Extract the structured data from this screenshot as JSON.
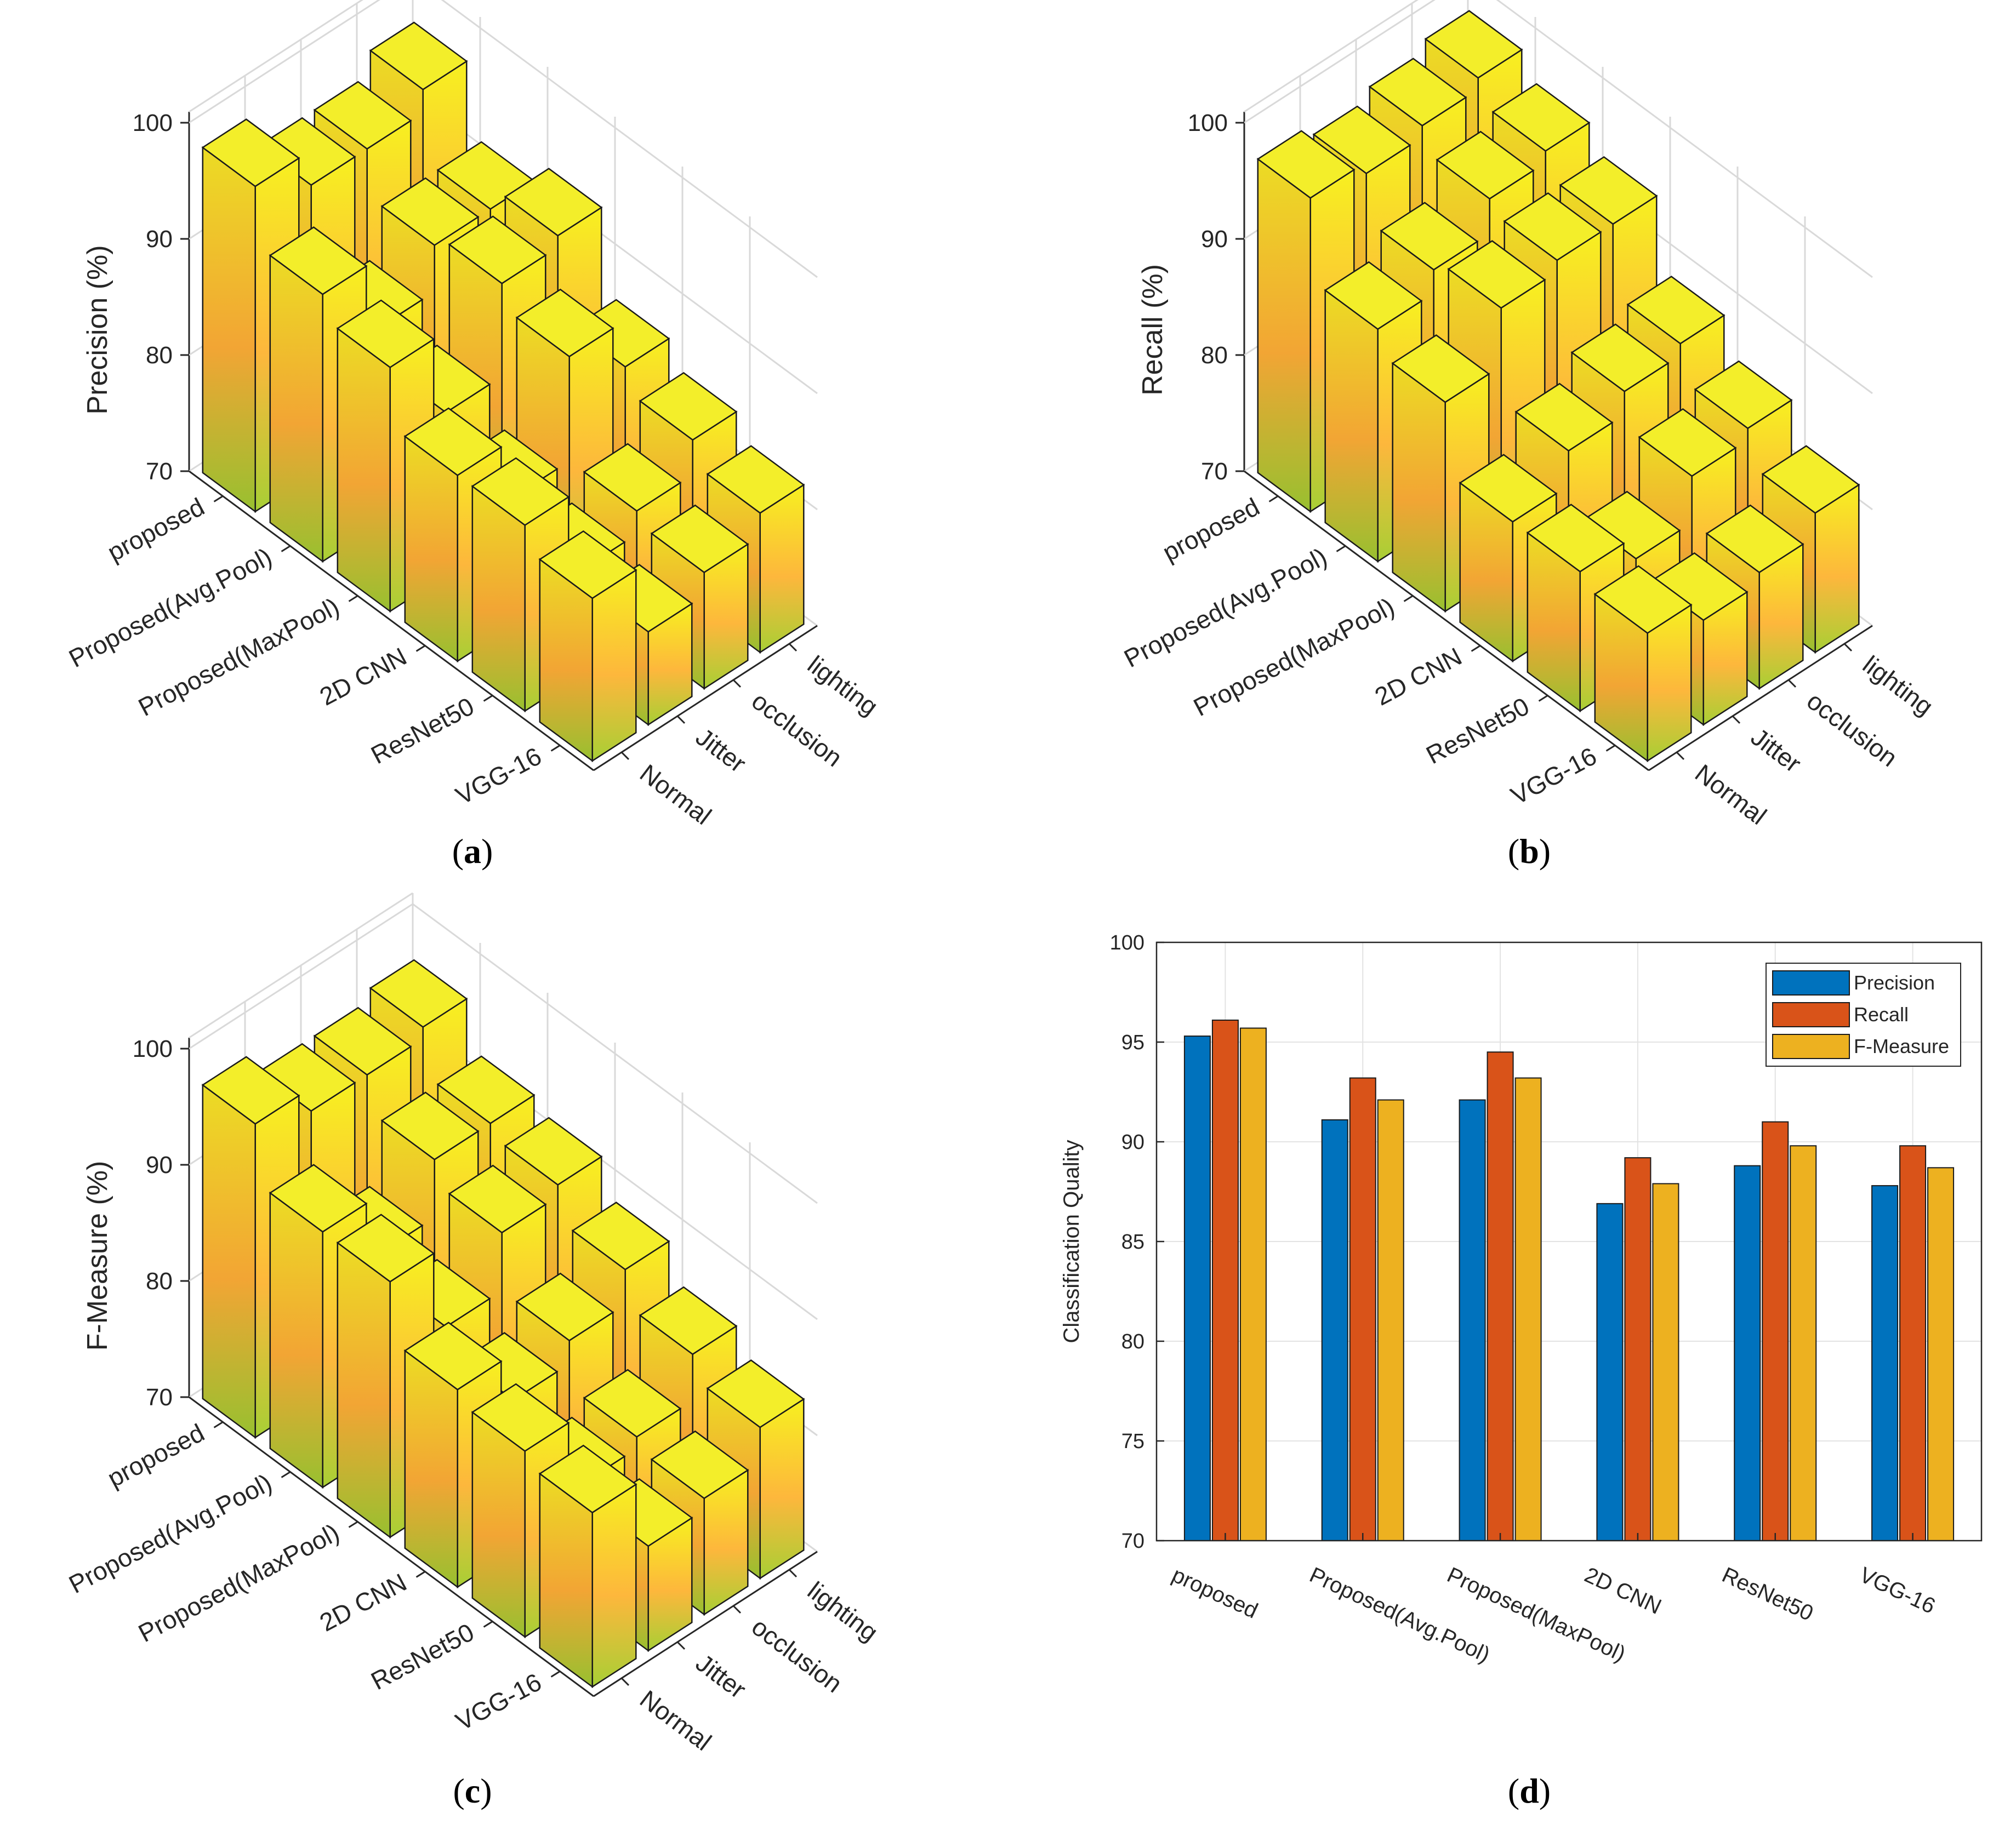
{
  "chart_data": [
    {
      "type": "bar3d",
      "panel_label": "a",
      "ylabel": "Precision (%)",
      "zlim": [
        70,
        100
      ],
      "zticks": [
        70,
        80,
        90,
        100
      ],
      "methods": [
        "proposed",
        "Proposed(Avg.Pool)",
        "Proposed(MaxPool)",
        "2D CNN",
        "ResNet50",
        "VGG-16"
      ],
      "conditions": [
        "Normal",
        "Jitter",
        "occlusion",
        "lighting"
      ],
      "values": [
        [
          98,
          95,
          95,
          97
        ],
        [
          93,
          87,
          91,
          91
        ],
        [
          91,
          84,
          92,
          93
        ],
        [
          86,
          81,
          90,
          86
        ],
        [
          86,
          79,
          81,
          84
        ],
        [
          84,
          78,
          80,
          82
        ]
      ]
    },
    {
      "type": "bar3d",
      "panel_label": "b",
      "ylabel": "Recall (%)",
      "zlim": [
        70,
        100
      ],
      "zticks": [
        70,
        80,
        90,
        100
      ],
      "methods": [
        "proposed",
        "Proposed(Avg.Pool)",
        "Proposed(MaxPool)",
        "2D CNN",
        "ResNet50",
        "VGG-16"
      ],
      "conditions": [
        "Normal",
        "Jitter",
        "occlusion",
        "lighting"
      ],
      "values": [
        [
          97,
          96,
          97,
          98
        ],
        [
          90,
          92,
          95,
          96
        ],
        [
          88,
          93,
          94,
          94
        ],
        [
          82,
          85,
          87,
          88
        ],
        [
          82,
          80,
          84,
          85
        ],
        [
          81,
          79,
          80,
          82
        ]
      ]
    },
    {
      "type": "bar3d",
      "panel_label": "c",
      "ylabel": "F-Measure (%)",
      "zlim": [
        70,
        100
      ],
      "zticks": [
        70,
        80,
        90,
        100
      ],
      "methods": [
        "proposed",
        "Proposed(Avg.Pool)",
        "Proposed(MaxPool)",
        "2D CNN",
        "ResNet50",
        "VGG-16"
      ],
      "conditions": [
        "Normal",
        "Jitter",
        "occlusion",
        "lighting"
      ],
      "values": [
        [
          97,
          95,
          95,
          96
        ],
        [
          92,
          87,
          92,
          92
        ],
        [
          92,
          85,
          90,
          91
        ],
        [
          87,
          83,
          85,
          88
        ],
        [
          86,
          80,
          81,
          85
        ],
        [
          85,
          79,
          80,
          83
        ]
      ]
    },
    {
      "type": "bar",
      "panel_label": "d",
      "ylabel": "Classification Quality",
      "ylim": [
        70,
        100
      ],
      "yticks": [
        70,
        75,
        80,
        85,
        90,
        95,
        100
      ],
      "categories": [
        "proposed",
        "Proposed(Avg.Pool)",
        "Proposed(MaxPool)",
        "2D CNN",
        "ResNet50",
        "VGG-16"
      ],
      "series": [
        {
          "name": "Precision",
          "color": "#0072BD",
          "values": [
            95.3,
            91.1,
            92.1,
            86.9,
            88.8,
            87.8
          ]
        },
        {
          "name": "Recall",
          "color": "#D95319",
          "values": [
            96.1,
            93.2,
            94.5,
            89.2,
            91.0,
            89.8
          ]
        },
        {
          "name": "F-Measure",
          "color": "#EDB120",
          "values": [
            95.7,
            92.1,
            93.2,
            87.9,
            89.8,
            88.7
          ]
        }
      ],
      "legend_position": "top-right",
      "grid": true
    }
  ]
}
